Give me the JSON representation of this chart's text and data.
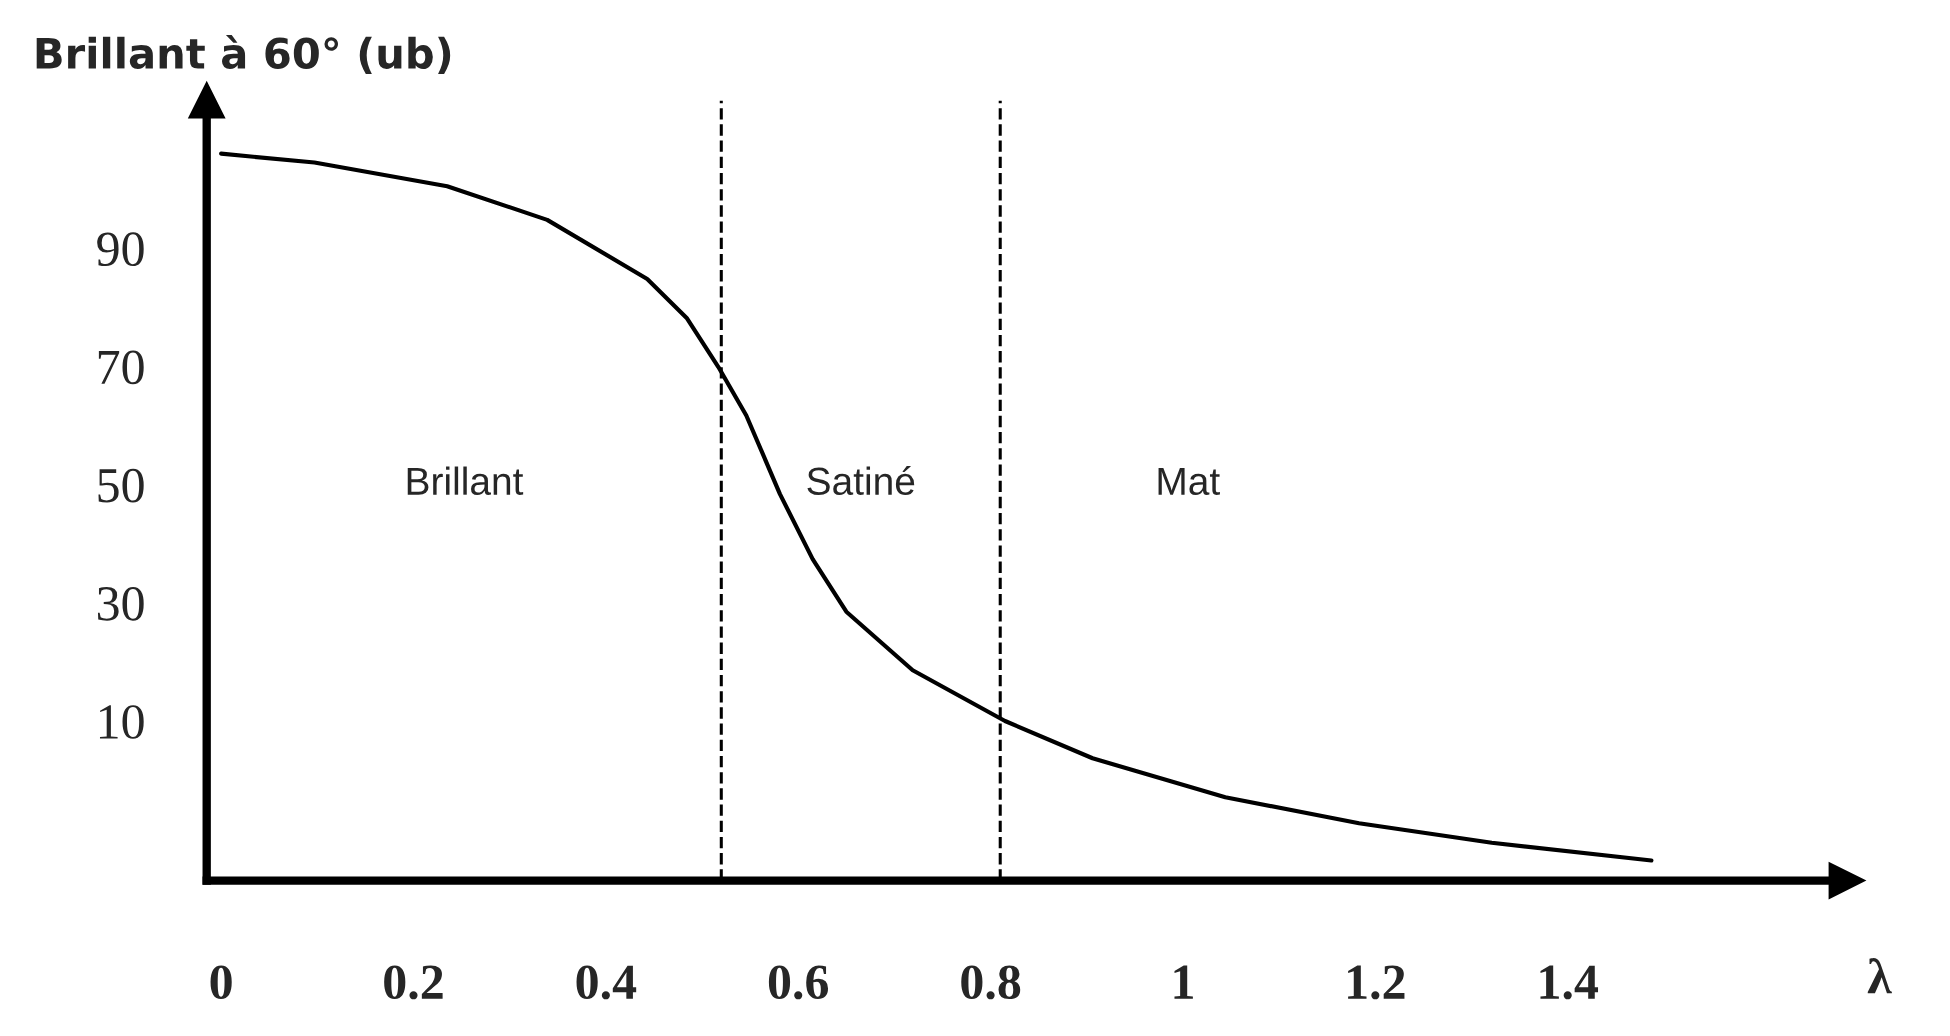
{
  "chart_data": {
    "type": "line",
    "xlabel": "λ",
    "ylabel": "Brillant à 60° (ub)",
    "x": [
      0,
      0.097,
      0.235,
      0.339,
      0.443,
      0.484,
      0.517,
      0.546,
      0.581,
      0.615,
      0.65,
      0.719,
      0.815,
      0.906,
      1.044,
      1.183,
      1.321,
      1.487
    ],
    "series": [
      {
        "color": "#000000",
        "values": [
          106.0,
          104.5,
          100.5,
          94.8,
          84.8,
          78.2,
          69.9,
          61.7,
          48.4,
          37.4,
          28.5,
          18.6,
          10.0,
          3.7,
          -2.9,
          -7.3,
          -10.6,
          -13.6
        ]
      }
    ],
    "xlim": [
      -0.015,
      1.69
    ],
    "ylim": [
      -17,
      115
    ],
    "xticks": [
      0,
      0.2,
      0.4,
      0.6,
      0.8,
      1,
      1.2,
      1.4
    ],
    "yticks": [
      10,
      30,
      50,
      70,
      90
    ],
    "ref_lines": [
      {
        "axis": "x",
        "value": 0.52,
        "color": "#000000",
        "line_style": "dashed"
      },
      {
        "axis": "x",
        "value": 0.81,
        "color": "#000000",
        "line_style": "dashed"
      }
    ],
    "annotations": [
      "Brillant",
      "Satiné",
      "Mat"
    ],
    "grid": false,
    "legend": false,
    "marker": "none",
    "line_style": "solid"
  }
}
